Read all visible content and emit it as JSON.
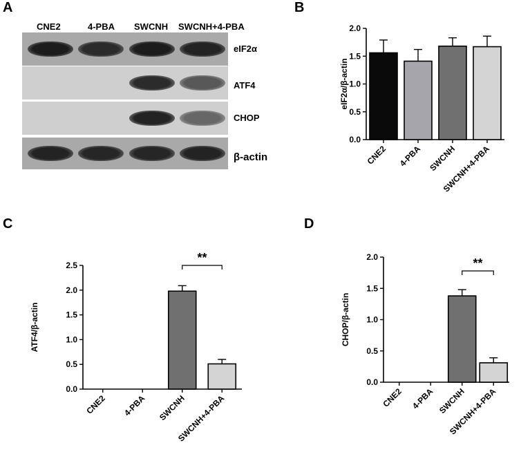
{
  "panels": {
    "a": "A",
    "b": "B",
    "c": "C",
    "d": "D"
  },
  "blot": {
    "headers": [
      "CNE2",
      "4-PBA",
      "SWCNH",
      "SWCNH+4-PBA"
    ],
    "rows": [
      {
        "label": "eIF2α",
        "intensity": [
          0.95,
          0.85,
          0.95,
          0.9
        ]
      },
      {
        "label": "ATF4",
        "intensity": [
          0.0,
          0.0,
          0.85,
          0.55
        ]
      },
      {
        "label": "CHOP",
        "intensity": [
          0.0,
          0.0,
          0.9,
          0.45
        ]
      },
      {
        "label": "β-actin",
        "intensity": [
          0.9,
          0.88,
          0.88,
          0.9
        ]
      }
    ]
  },
  "chart_data": [
    {
      "type": "bar",
      "panel": "B",
      "ylabel": "eIF2α/β-actin",
      "categories": [
        "CNE2",
        "4-PBA",
        "SWCNH",
        "SWCNH+4-PBA"
      ],
      "values": [
        1.56,
        1.41,
        1.68,
        1.67
      ],
      "errors": [
        0.23,
        0.21,
        0.15,
        0.19
      ],
      "colors": [
        "#0a0a0a",
        "#a5a5ab",
        "#707070",
        "#d4d4d4"
      ],
      "ylim": [
        0,
        2.0
      ],
      "yticks": [
        "0.0",
        "0.5",
        "1.0",
        "1.5",
        "2.0"
      ],
      "significance": null
    },
    {
      "type": "bar",
      "panel": "C",
      "ylabel": "ATF4/β-actin",
      "categories": [
        "CNE2",
        "4-PBA",
        "SWCNH",
        "SWCNH+4-PBA"
      ],
      "values": [
        0,
        0,
        1.98,
        0.51
      ],
      "errors": [
        0,
        0,
        0.11,
        0.09
      ],
      "colors": [
        "#0a0a0a",
        "#a5a5ab",
        "#707070",
        "#d4d4d4"
      ],
      "ylim": [
        0,
        2.5
      ],
      "yticks": [
        "0.0",
        "0.5",
        "1.0",
        "1.5",
        "2.0",
        "2.5"
      ],
      "significance": {
        "label": "**",
        "from": 2,
        "to": 3
      }
    },
    {
      "type": "bar",
      "panel": "D",
      "ylabel": "CHOP/β-actin",
      "categories": [
        "CNE2",
        "4-PBA",
        "SWCNH",
        "SWCNH+4-PBA"
      ],
      "values": [
        0,
        0,
        1.38,
        0.31
      ],
      "errors": [
        0,
        0,
        0.1,
        0.08
      ],
      "colors": [
        "#0a0a0a",
        "#a5a5ab",
        "#707070",
        "#d4d4d4"
      ],
      "ylim": [
        0,
        2.0
      ],
      "yticks": [
        "0.0",
        "0.5",
        "1.0",
        "1.5",
        "2.0"
      ],
      "significance": {
        "label": "**",
        "from": 2,
        "to": 3
      }
    }
  ]
}
